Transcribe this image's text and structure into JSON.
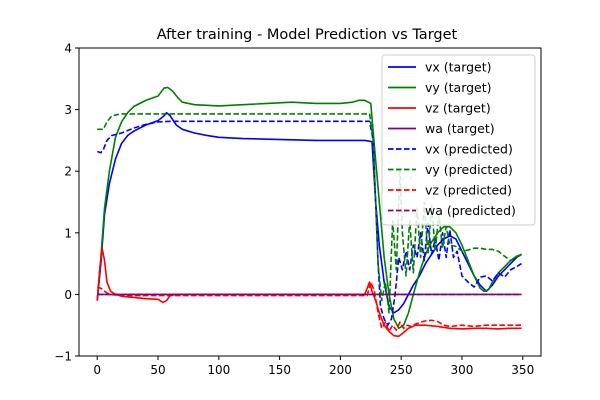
{
  "chart_data": {
    "type": "line",
    "title": "After training - Model Prediction vs Target",
    "xlabel": "",
    "ylabel": "",
    "xlim": [
      -15,
      365
    ],
    "ylim": [
      -1,
      4
    ],
    "xticks": [
      "0",
      "50",
      "100",
      "150",
      "200",
      "250",
      "300",
      "350"
    ],
    "yticks": [
      "−1",
      "0",
      "1",
      "2",
      "3",
      "4"
    ],
    "grid": false,
    "legend_position": "top-right",
    "series": [
      {
        "name": "vx (target)",
        "color": "#0000ff",
        "style": "solid",
        "points": [
          [
            0,
            -0.1
          ],
          [
            3,
            0.5
          ],
          [
            6,
            1.3
          ],
          [
            10,
            1.8
          ],
          [
            15,
            2.2
          ],
          [
            20,
            2.45
          ],
          [
            25,
            2.58
          ],
          [
            30,
            2.65
          ],
          [
            40,
            2.75
          ],
          [
            50,
            2.82
          ],
          [
            55,
            2.9
          ],
          [
            57,
            2.95
          ],
          [
            60,
            2.9
          ],
          [
            65,
            2.75
          ],
          [
            70,
            2.68
          ],
          [
            80,
            2.62
          ],
          [
            90,
            2.58
          ],
          [
            100,
            2.55
          ],
          [
            120,
            2.53
          ],
          [
            140,
            2.52
          ],
          [
            160,
            2.51
          ],
          [
            180,
            2.5
          ],
          [
            200,
            2.5
          ],
          [
            220,
            2.5
          ],
          [
            226,
            2.48
          ],
          [
            229,
            1.5
          ],
          [
            232,
            0.8
          ],
          [
            236,
            0.2
          ],
          [
            240,
            -0.2
          ],
          [
            244,
            -0.3
          ],
          [
            248,
            -0.25
          ],
          [
            252,
            -0.15
          ],
          [
            256,
            0.0
          ],
          [
            260,
            0.15
          ],
          [
            265,
            0.3
          ],
          [
            270,
            0.5
          ],
          [
            275,
            0.65
          ],
          [
            280,
            0.8
          ],
          [
            285,
            0.9
          ],
          [
            290,
            0.95
          ],
          [
            295,
            0.9
          ],
          [
            300,
            0.7
          ],
          [
            305,
            0.5
          ],
          [
            310,
            0.3
          ],
          [
            315,
            0.15
          ],
          [
            320,
            0.05
          ],
          [
            325,
            0.15
          ],
          [
            330,
            0.3
          ],
          [
            335,
            0.4
          ],
          [
            340,
            0.5
          ],
          [
            345,
            0.6
          ],
          [
            349,
            0.65
          ]
        ]
      },
      {
        "name": "vy (target)",
        "color": "#008000",
        "style": "solid",
        "points": [
          [
            0,
            -0.1
          ],
          [
            3,
            0.6
          ],
          [
            6,
            1.4
          ],
          [
            10,
            2.0
          ],
          [
            15,
            2.55
          ],
          [
            20,
            2.8
          ],
          [
            25,
            2.95
          ],
          [
            30,
            3.05
          ],
          [
            40,
            3.15
          ],
          [
            50,
            3.22
          ],
          [
            55,
            3.35
          ],
          [
            58,
            3.36
          ],
          [
            62,
            3.3
          ],
          [
            66,
            3.2
          ],
          [
            70,
            3.12
          ],
          [
            80,
            3.08
          ],
          [
            100,
            3.06
          ],
          [
            120,
            3.08
          ],
          [
            140,
            3.1
          ],
          [
            160,
            3.12
          ],
          [
            180,
            3.1
          ],
          [
            200,
            3.1
          ],
          [
            210,
            3.12
          ],
          [
            215,
            3.15
          ],
          [
            220,
            3.15
          ],
          [
            225,
            3.1
          ],
          [
            228,
            2.4
          ],
          [
            232,
            1.5
          ],
          [
            236,
            0.6
          ],
          [
            240,
            0.0
          ],
          [
            244,
            -0.4
          ],
          [
            248,
            -0.55
          ],
          [
            252,
            -0.5
          ],
          [
            256,
            -0.3
          ],
          [
            260,
            0.0
          ],
          [
            265,
            0.35
          ],
          [
            270,
            0.65
          ],
          [
            275,
            0.85
          ],
          [
            280,
            1.0
          ],
          [
            285,
            1.1
          ],
          [
            290,
            1.1
          ],
          [
            295,
            1.0
          ],
          [
            300,
            0.8
          ],
          [
            305,
            0.55
          ],
          [
            310,
            0.3
          ],
          [
            315,
            0.1
          ],
          [
            318,
            0.05
          ],
          [
            322,
            0.08
          ],
          [
            325,
            0.2
          ],
          [
            330,
            0.35
          ],
          [
            335,
            0.45
          ],
          [
            340,
            0.55
          ],
          [
            345,
            0.62
          ],
          [
            349,
            0.65
          ]
        ]
      },
      {
        "name": "vz (target)",
        "color": "#ff0000",
        "style": "solid",
        "points": [
          [
            0,
            -0.1
          ],
          [
            2,
            0.4
          ],
          [
            4,
            0.75
          ],
          [
            6,
            0.55
          ],
          [
            8,
            0.2
          ],
          [
            11,
            0.05
          ],
          [
            15,
            0.0
          ],
          [
            20,
            -0.03
          ],
          [
            30,
            -0.05
          ],
          [
            40,
            -0.07
          ],
          [
            50,
            -0.08
          ],
          [
            54,
            -0.13
          ],
          [
            57,
            -0.1
          ],
          [
            60,
            -0.02
          ],
          [
            65,
            0.0
          ],
          [
            80,
            0.0
          ],
          [
            100,
            0.0
          ],
          [
            150,
            0.0
          ],
          [
            200,
            0.0
          ],
          [
            220,
            0.0
          ],
          [
            222,
            0.1
          ],
          [
            224,
            0.2
          ],
          [
            226,
            0.05
          ],
          [
            229,
            -0.1
          ],
          [
            232,
            -0.3
          ],
          [
            236,
            -0.5
          ],
          [
            240,
            -0.6
          ],
          [
            244,
            -0.67
          ],
          [
            248,
            -0.68
          ],
          [
            252,
            -0.62
          ],
          [
            256,
            -0.55
          ],
          [
            262,
            -0.5
          ],
          [
            270,
            -0.5
          ],
          [
            280,
            -0.52
          ],
          [
            290,
            -0.55
          ],
          [
            300,
            -0.56
          ],
          [
            310,
            -0.55
          ],
          [
            320,
            -0.55
          ],
          [
            330,
            -0.56
          ],
          [
            340,
            -0.55
          ],
          [
            349,
            -0.55
          ]
        ]
      },
      {
        "name": "wa (target)",
        "color": "#800080",
        "style": "solid",
        "points": [
          [
            0,
            0.0
          ],
          [
            349,
            0.0
          ]
        ]
      },
      {
        "name": "vx (predicted)",
        "color": "#0000ff",
        "style": "dashed",
        "points": [
          [
            0,
            2.32
          ],
          [
            3,
            2.3
          ],
          [
            5,
            2.35
          ],
          [
            8,
            2.5
          ],
          [
            12,
            2.58
          ],
          [
            20,
            2.62
          ],
          [
            30,
            2.7
          ],
          [
            40,
            2.76
          ],
          [
            50,
            2.8
          ],
          [
            60,
            2.81
          ],
          [
            80,
            2.81
          ],
          [
            100,
            2.81
          ],
          [
            150,
            2.81
          ],
          [
            200,
            2.81
          ],
          [
            224,
            2.81
          ],
          [
            227,
            2.5
          ],
          [
            229,
            1.5
          ],
          [
            231,
            0.5
          ],
          [
            233,
            -0.2
          ],
          [
            236,
            -0.4
          ],
          [
            239,
            -0.5
          ],
          [
            242,
            -0.4
          ],
          [
            245,
            0.0
          ],
          [
            248,
            0.6
          ],
          [
            251,
            0.4
          ],
          [
            254,
            0.7
          ],
          [
            257,
            0.4
          ],
          [
            260,
            0.8
          ],
          [
            263,
            0.6
          ],
          [
            266,
            1.0
          ],
          [
            269,
            0.55
          ],
          [
            272,
            1.15
          ],
          [
            275,
            0.65
          ],
          [
            278,
            0.9
          ],
          [
            281,
            0.55
          ],
          [
            284,
            1.0
          ],
          [
            287,
            0.6
          ],
          [
            290,
            1.05
          ],
          [
            293,
            0.6
          ],
          [
            296,
            0.7
          ],
          [
            300,
            0.3
          ],
          [
            305,
            0.2
          ],
          [
            310,
            0.12
          ],
          [
            315,
            0.28
          ],
          [
            320,
            0.3
          ],
          [
            325,
            0.22
          ],
          [
            330,
            0.35
          ],
          [
            335,
            0.28
          ],
          [
            340,
            0.4
          ],
          [
            345,
            0.45
          ],
          [
            349,
            0.5
          ]
        ]
      },
      {
        "name": "vy (predicted)",
        "color": "#008000",
        "style": "dashed",
        "points": [
          [
            0,
            2.68
          ],
          [
            5,
            2.68
          ],
          [
            8,
            2.8
          ],
          [
            12,
            2.9
          ],
          [
            20,
            2.93
          ],
          [
            40,
            2.93
          ],
          [
            60,
            2.93
          ],
          [
            100,
            2.93
          ],
          [
            150,
            2.93
          ],
          [
            200,
            2.93
          ],
          [
            224,
            2.93
          ],
          [
            227,
            2.5
          ],
          [
            229,
            1.5
          ],
          [
            231,
            0.5
          ],
          [
            234,
            -0.1
          ],
          [
            237,
            0.2
          ],
          [
            240,
            -0.3
          ],
          [
            243,
            1.2
          ],
          [
            246,
            0.4
          ],
          [
            249,
            2.05
          ],
          [
            251,
            1.0
          ],
          [
            254,
            0.3
          ],
          [
            257,
            1.2
          ],
          [
            260,
            0.35
          ],
          [
            263,
            1.4
          ],
          [
            266,
            0.6
          ],
          [
            269,
            1.5
          ],
          [
            272,
            0.65
          ],
          [
            275,
            1.45
          ],
          [
            278,
            0.7
          ],
          [
            281,
            1.3
          ],
          [
            284,
            0.75
          ],
          [
            287,
            1.1
          ],
          [
            290,
            0.8
          ],
          [
            295,
            0.78
          ],
          [
            300,
            0.7
          ],
          [
            305,
            0.72
          ],
          [
            310,
            0.75
          ],
          [
            315,
            0.75
          ],
          [
            320,
            0.73
          ],
          [
            325,
            0.73
          ],
          [
            330,
            0.7
          ],
          [
            335,
            0.62
          ],
          [
            340,
            0.55
          ],
          [
            345,
            0.6
          ],
          [
            349,
            0.65
          ]
        ]
      },
      {
        "name": "vz (predicted)",
        "color": "#ff0000",
        "style": "dashed",
        "points": [
          [
            0,
            0.12
          ],
          [
            3,
            0.1
          ],
          [
            6,
            0.05
          ],
          [
            10,
            0.0
          ],
          [
            20,
            -0.02
          ],
          [
            50,
            -0.02
          ],
          [
            100,
            -0.02
          ],
          [
            150,
            -0.02
          ],
          [
            200,
            -0.02
          ],
          [
            222,
            -0.02
          ],
          [
            225,
            0.2
          ],
          [
            228,
            0.05
          ],
          [
            231,
            -0.3
          ],
          [
            234,
            -0.55
          ],
          [
            237,
            -0.45
          ],
          [
            240,
            -0.6
          ],
          [
            243,
            -0.5
          ],
          [
            246,
            -0.58
          ],
          [
            249,
            -0.45
          ],
          [
            252,
            -0.55
          ],
          [
            255,
            -0.5
          ],
          [
            258,
            -0.52
          ],
          [
            262,
            -0.48
          ],
          [
            266,
            -0.45
          ],
          [
            270,
            -0.43
          ],
          [
            275,
            -0.42
          ],
          [
            280,
            -0.44
          ],
          [
            285,
            -0.5
          ],
          [
            290,
            -0.52
          ],
          [
            300,
            -0.5
          ],
          [
            310,
            -0.52
          ],
          [
            320,
            -0.5
          ],
          [
            330,
            -0.5
          ],
          [
            340,
            -0.5
          ],
          [
            349,
            -0.5
          ]
        ]
      },
      {
        "name": "wa (predicted)",
        "color": "#800080",
        "style": "dashed",
        "points": [
          [
            0,
            0.0
          ],
          [
            349,
            0.0
          ]
        ]
      }
    ]
  }
}
